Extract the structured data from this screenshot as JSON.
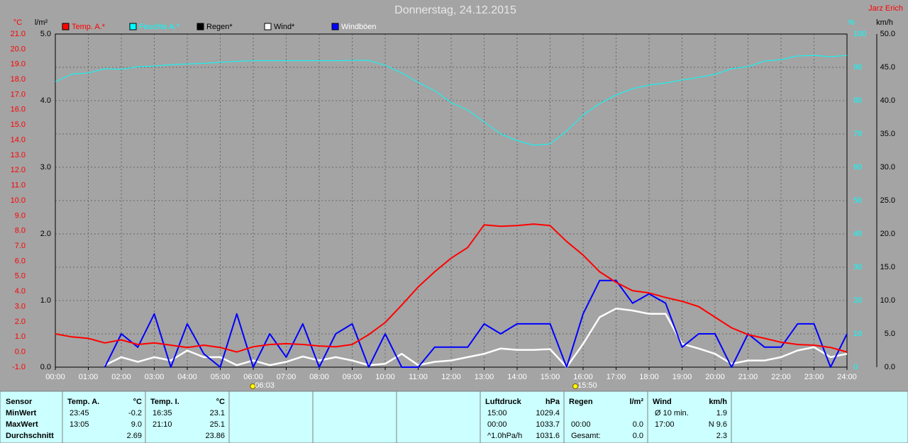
{
  "chart_data": {
    "type": "line",
    "title": "Donnerstag, 24.12.2015",
    "subtitle": "Jarz Erich",
    "x": [
      0,
      0.5,
      1,
      1.5,
      2,
      2.5,
      3,
      3.5,
      4,
      4.5,
      5,
      5.5,
      6,
      6.5,
      7,
      7.5,
      8,
      8.5,
      9,
      9.5,
      10,
      10.5,
      11,
      11.5,
      12,
      12.5,
      13,
      13.5,
      14,
      14.5,
      15,
      15.5,
      16,
      16.5,
      17,
      17.5,
      18,
      18.5,
      19,
      19.5,
      20,
      20.5,
      21,
      21.5,
      22,
      22.5,
      23,
      23.5,
      24
    ],
    "xlim": [
      0,
      24
    ],
    "xticks": [
      {
        "value": 0,
        "label": "00:00"
      },
      {
        "value": 1,
        "label": "01:00"
      },
      {
        "value": 2,
        "label": "02:00"
      },
      {
        "value": 3,
        "label": "03:00"
      },
      {
        "value": 4,
        "label": "04:00"
      },
      {
        "value": 5,
        "label": "05:00"
      },
      {
        "value": 6,
        "label": "06:00"
      },
      {
        "value": 7,
        "label": "07:00"
      },
      {
        "value": 8,
        "label": "08:00"
      },
      {
        "value": 9,
        "label": "09:00"
      },
      {
        "value": 10,
        "label": "10:00"
      },
      {
        "value": 11,
        "label": "11:00"
      },
      {
        "value": 12,
        "label": "12:00"
      },
      {
        "value": 13,
        "label": "13:00"
      },
      {
        "value": 14,
        "label": "14:00"
      },
      {
        "value": 15,
        "label": "15:00"
      },
      {
        "value": 16,
        "label": "16:00"
      },
      {
        "value": 17,
        "label": "17:00"
      },
      {
        "value": 18,
        "label": "18:00"
      },
      {
        "value": 19,
        "label": "19:00"
      },
      {
        "value": 20,
        "label": "20:00"
      },
      {
        "value": 21,
        "label": "21:00"
      },
      {
        "value": 22,
        "label": "22:00"
      },
      {
        "value": 23,
        "label": "23:00"
      },
      {
        "value": 24,
        "label": "24:00"
      }
    ],
    "grid": true,
    "axes": {
      "temp": {
        "label": "°C",
        "color": "#ff0000",
        "lim": [
          -1,
          21
        ],
        "ticks": [
          {
            "value": 21,
            "label": "21.0"
          },
          {
            "value": 20,
            "label": "20.0"
          },
          {
            "value": 19,
            "label": "19.0"
          },
          {
            "value": 18,
            "label": "18.0"
          },
          {
            "value": 17,
            "label": "17.0"
          },
          {
            "value": 16,
            "label": "16.0"
          },
          {
            "value": 15,
            "label": "15.0"
          },
          {
            "value": 14,
            "label": "14.0"
          },
          {
            "value": 13,
            "label": "13.0"
          },
          {
            "value": 12,
            "label": "12.0"
          },
          {
            "value": 11,
            "label": "11.0"
          },
          {
            "value": 10,
            "label": "10.0"
          },
          {
            "value": 9,
            "label": "9.0"
          },
          {
            "value": 8,
            "label": "8.0"
          },
          {
            "value": 7,
            "label": "7.0"
          },
          {
            "value": 6,
            "label": "6.0"
          },
          {
            "value": 5,
            "label": "5.0"
          },
          {
            "value": 4,
            "label": "4.0"
          },
          {
            "value": 3,
            "label": "3.0"
          },
          {
            "value": 2,
            "label": "2.0"
          },
          {
            "value": 1,
            "label": "1.0"
          },
          {
            "value": 0,
            "label": "0.0"
          },
          {
            "value": -1,
            "label": "-1.0"
          }
        ]
      },
      "rain": {
        "label": "l/m²",
        "color": "#000000",
        "lim": [
          0,
          5
        ],
        "ticks": [
          {
            "value": 5,
            "label": "5.0"
          },
          {
            "value": 4,
            "label": "4.0"
          },
          {
            "value": 3,
            "label": "3.0"
          },
          {
            "value": 2,
            "label": "2.0"
          },
          {
            "value": 1,
            "label": "1.0"
          },
          {
            "value": 0,
            "label": "0.0"
          }
        ]
      },
      "hum": {
        "label": "%",
        "color": "#00ffff",
        "lim": [
          0,
          100
        ],
        "ticks": [
          100,
          90,
          80,
          70,
          60,
          50,
          40,
          30,
          20,
          10,
          0
        ]
      },
      "wind": {
        "label": "km/h",
        "color": "#000000",
        "lim": [
          0,
          50
        ],
        "ticks": [
          {
            "value": 50,
            "label": "50.0"
          },
          {
            "value": 45,
            "label": "45.0"
          },
          {
            "value": 40,
            "label": "40.0"
          },
          {
            "value": 35,
            "label": "35.0"
          },
          {
            "value": 30,
            "label": "30.0"
          },
          {
            "value": 25,
            "label": "25.0"
          },
          {
            "value": 20,
            "label": "20.0"
          },
          {
            "value": 15,
            "label": "15.0"
          },
          {
            "value": 10,
            "label": "10.0"
          },
          {
            "value": 5,
            "label": "5.0"
          },
          {
            "value": 0,
            "label": "0.0"
          }
        ]
      }
    },
    "series": [
      {
        "name": "Temp. A.*",
        "color": "#ff0000",
        "axis": "temp",
        "width": 2,
        "values": [
          1.2,
          1.0,
          0.9,
          0.6,
          0.8,
          0.5,
          0.6,
          0.45,
          0.3,
          0.45,
          0.3,
          0.0,
          0.35,
          0.5,
          0.55,
          0.5,
          0.4,
          0.35,
          0.5,
          1.15,
          1.95,
          3.1,
          4.3,
          5.3,
          6.2,
          6.9,
          8.4,
          8.3,
          8.35,
          8.45,
          8.35,
          7.3,
          6.4,
          5.3,
          4.6,
          4.05,
          3.9,
          3.6,
          3.35,
          3.0,
          2.3,
          1.6,
          1.15,
          0.9,
          0.65,
          0.5,
          0.45,
          0.3,
          0.0
        ]
      },
      {
        "name": "Feuchte A.*",
        "color": "#00ffff",
        "axis": "hum",
        "width": 1,
        "values": [
          85.7,
          88,
          88.3,
          89.6,
          89.4,
          90.2,
          90.4,
          90.8,
          91,
          91.2,
          91.5,
          91.8,
          92,
          92,
          92,
          92,
          92,
          92,
          92.1,
          92.1,
          90.6,
          88.3,
          85.5,
          83,
          79.4,
          77.2,
          73.6,
          70,
          68,
          66.6,
          67,
          70.9,
          75.7,
          79.1,
          81.7,
          83.6,
          84.7,
          85.3,
          86.2,
          87,
          87.9,
          89.6,
          90.2,
          91.9,
          92.3,
          93.4,
          93.6,
          93.2,
          93.6
        ]
      },
      {
        "name": "Regen*",
        "color": "#000000",
        "axis": "rain"
      },
      {
        "name": "Wind*",
        "color": "#ffffff",
        "axis": "wind",
        "width": 2.5,
        "values": [
          null,
          null,
          null,
          0.3,
          1.5,
          0.8,
          1.5,
          1.0,
          2.5,
          1.5,
          1.5,
          0.3,
          1.0,
          0.3,
          0.8,
          1.6,
          1.0,
          1.5,
          1.0,
          0.3,
          0.5,
          2.0,
          0.3,
          0.8,
          1.0,
          1.5,
          2.0,
          2.8,
          2.6,
          2.6,
          2.7,
          0.0,
          3.5,
          7.5,
          8.8,
          8.5,
          8.0,
          8.0,
          3.5,
          2.8,
          2.0,
          0.5,
          1.0,
          1.0,
          1.5,
          2.5,
          3.0,
          1.5,
          2.0
        ]
      },
      {
        "name": "Windböen",
        "color": "#0000ff",
        "axis": "wind",
        "width": 2,
        "values": [
          null,
          null,
          null,
          0.0,
          5.0,
          3.0,
          8.0,
          0.0,
          6.5,
          2.0,
          0.0,
          8.0,
          0.0,
          5.0,
          1.5,
          6.5,
          0.0,
          5.0,
          6.5,
          0.0,
          5.0,
          0.0,
          0.0,
          3.0,
          3.0,
          3.0,
          6.5,
          5.0,
          6.5,
          6.5,
          6.5,
          0.0,
          8.0,
          13.0,
          13.0,
          9.6,
          11.0,
          9.6,
          3.0,
          5.0,
          5.0,
          0.0,
          5.0,
          3.0,
          3.0,
          6.5,
          6.5,
          0.0,
          5.0
        ]
      }
    ],
    "annotations": [
      {
        "text": "06:03",
        "x": 6.05
      },
      {
        "text": "15:50",
        "x": 15.83
      }
    ]
  },
  "table": {
    "labels": [
      "Sensor",
      "MinWert",
      "MaxWert",
      "Durchschnitt"
    ],
    "columns": [
      {
        "header": "Temp. A.",
        "unit": "°C",
        "rows": [
          [
            "23:45",
            "-0.2"
          ],
          [
            "13:05",
            "9.0"
          ],
          [
            null,
            "2.69"
          ]
        ]
      },
      {
        "header": "Temp. I.",
        "unit": "°C",
        "rows": [
          [
            "16:35",
            "23.1"
          ],
          [
            "21:10",
            "25.1"
          ],
          [
            null,
            "23.86"
          ]
        ]
      },
      {
        "header": "Luftdruck",
        "unit": "hPa",
        "rows": [
          [
            "15:00",
            "1029.4"
          ],
          [
            "00:00",
            "1033.7"
          ],
          [
            "^1.0hPa/h",
            "1031.6"
          ]
        ]
      },
      {
        "header": "Regen",
        "unit": "l/m²",
        "rows": [
          [
            null,
            null
          ],
          [
            "00:00",
            "0.0"
          ],
          [
            "Gesamt:",
            "0.0"
          ]
        ]
      },
      {
        "header": "Wind",
        "unit": "km/h",
        "rows": [
          [
            "Ø 10 min.",
            "1.9"
          ],
          [
            "17:00",
            "N 9.6"
          ],
          [
            null,
            "2.3"
          ]
        ]
      }
    ]
  }
}
